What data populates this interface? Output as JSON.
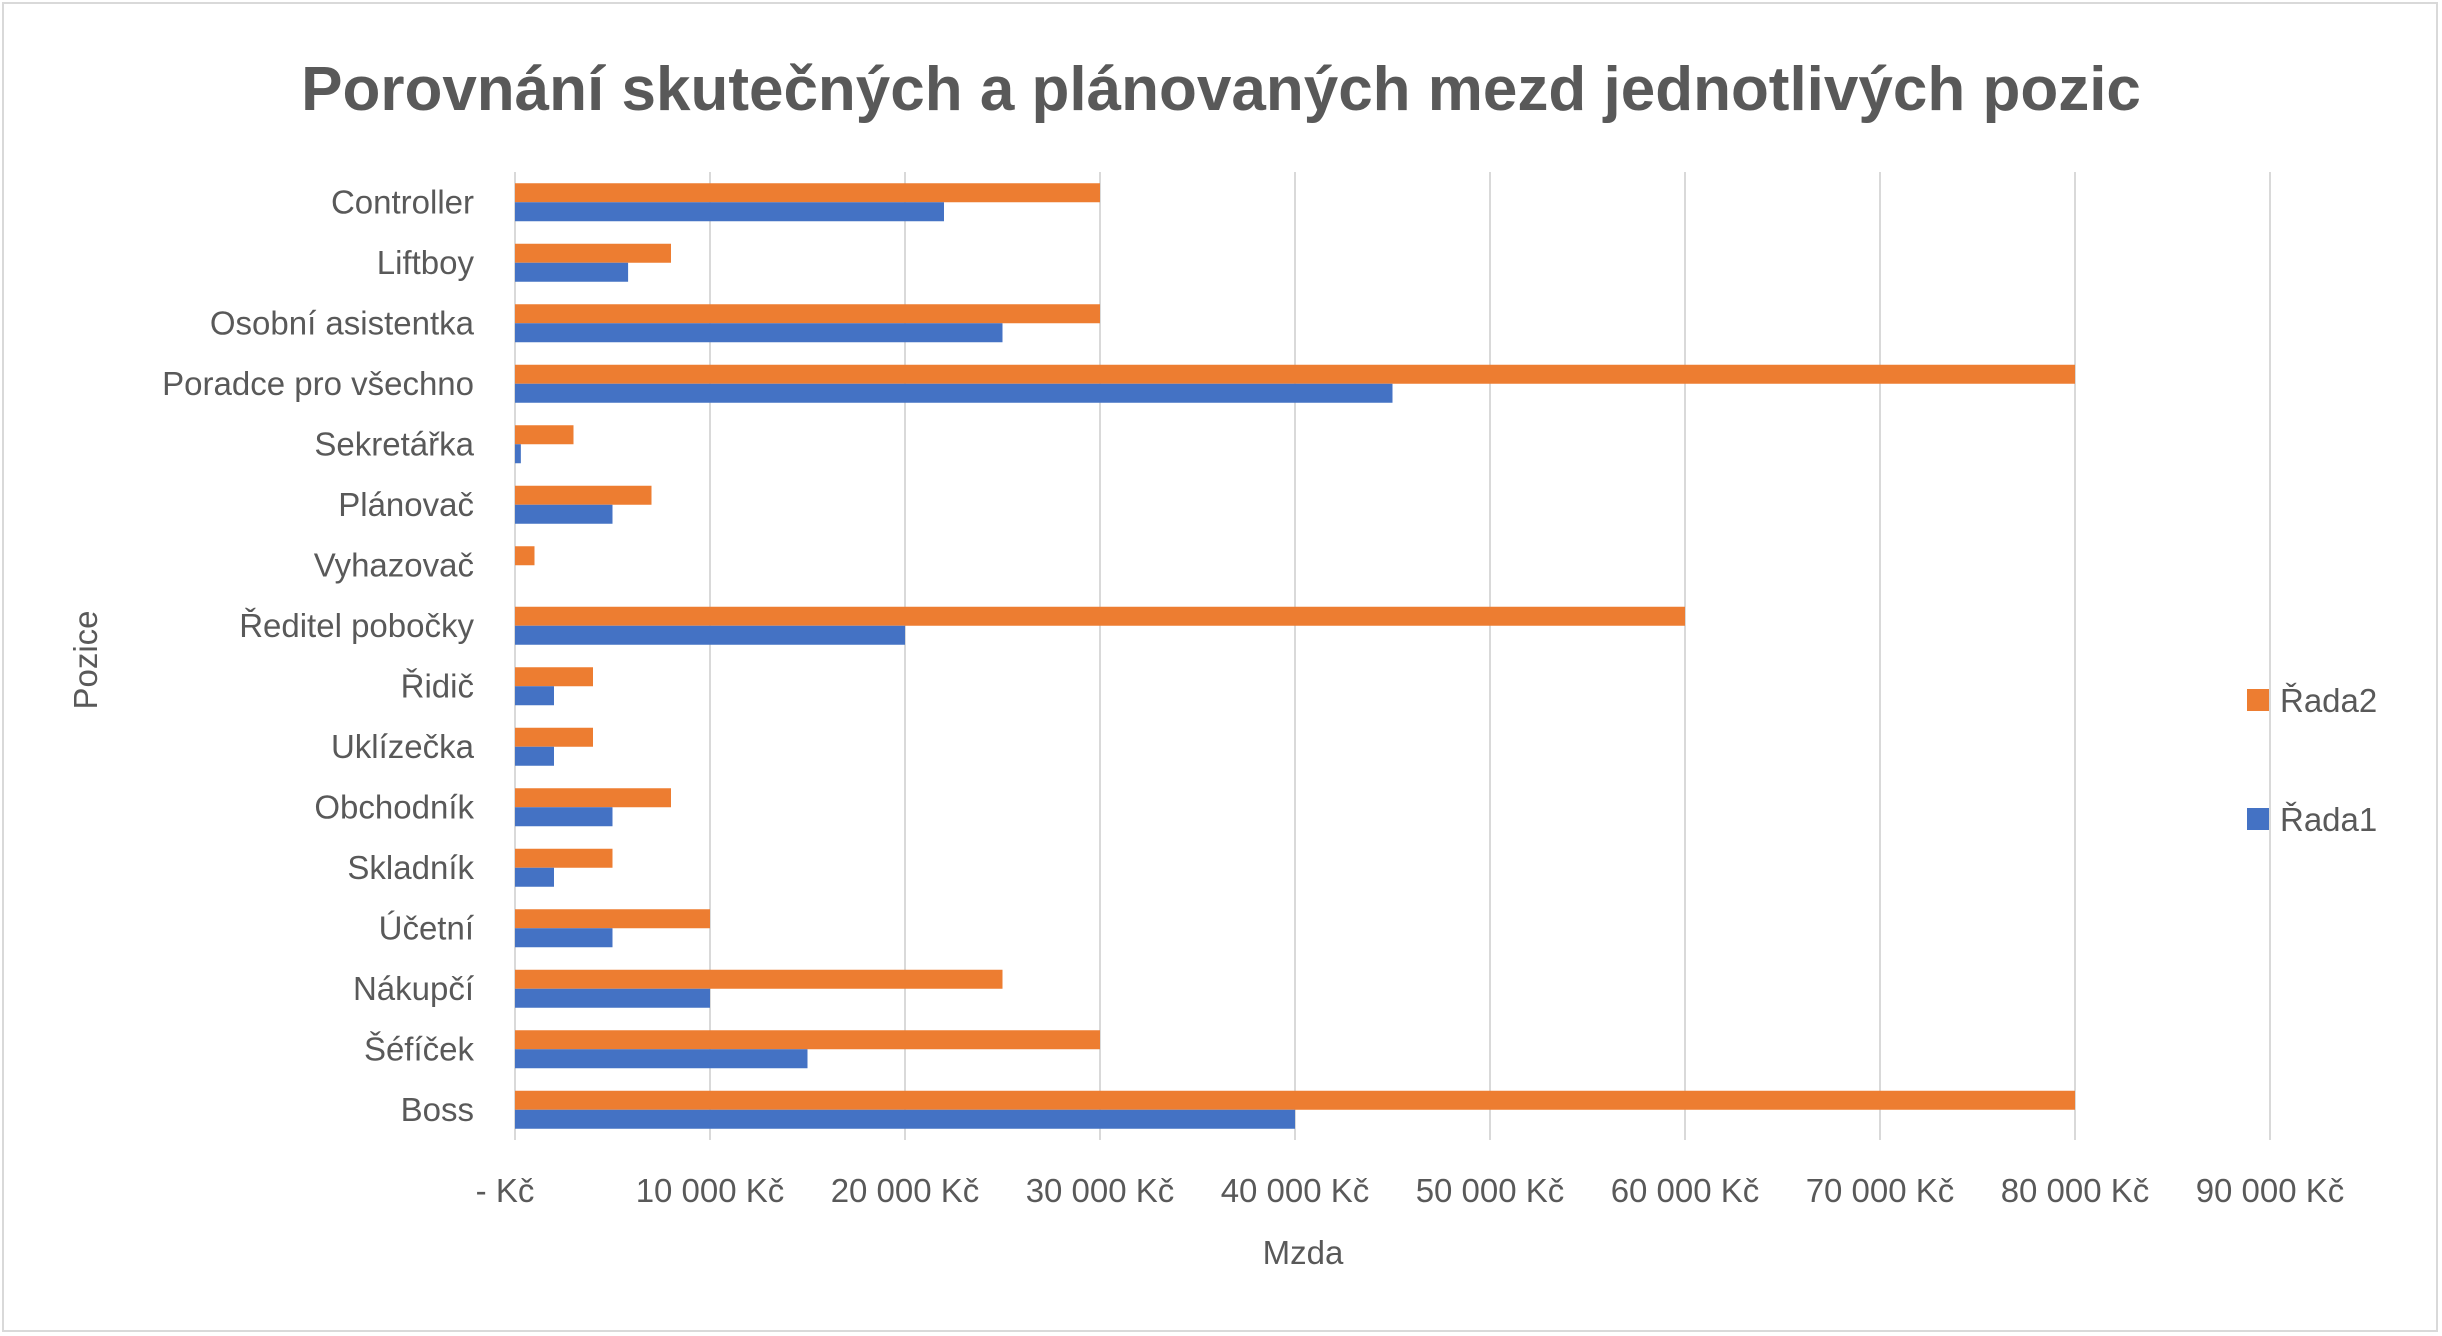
{
  "chart_data": {
    "type": "bar",
    "orientation": "horizontal",
    "title": "Porovnání skutečných a plánovaných mezd jednotlivých pozic",
    "xlabel": "Mzda",
    "ylabel": "Pozice",
    "xlim": [
      0,
      90000
    ],
    "x_ticks": [
      0,
      10000,
      20000,
      30000,
      40000,
      50000,
      60000,
      70000,
      80000,
      90000
    ],
    "x_tick_labels": [
      "-   Kč",
      "10 000 Kč",
      "20 000 Kč",
      "30 000 Kč",
      "40 000 Kč",
      "50 000 Kč",
      "60 000 Kč",
      "70 000 Kč",
      "80 000 Kč",
      "90 000 Kč"
    ],
    "grid": "vertical",
    "legend_position": "right",
    "categories": [
      "Boss",
      "Šéfíček",
      "Nákupčí",
      "Účetní",
      "Skladník",
      "Obchodník",
      "Uklízečka",
      "Řidič",
      "Ředitel pobočky",
      "Vyhazovač",
      "Plánovač",
      "Sekretářka",
      "Poradce pro všechno",
      "Osobní asistentka",
      "Liftboy",
      "Controller"
    ],
    "series": [
      {
        "name": "Řada1",
        "color": "#4472C4",
        "values": [
          40000,
          15000,
          10000,
          5000,
          2000,
          5000,
          2000,
          2000,
          20000,
          0,
          5000,
          300,
          45000,
          25000,
          5800,
          22000
        ]
      },
      {
        "name": "Řada2",
        "color": "#ED7D31",
        "values": [
          80000,
          30000,
          25000,
          10000,
          5000,
          8000,
          4000,
          4000,
          60000,
          1000,
          7000,
          3000,
          80000,
          30000,
          8000,
          30000
        ]
      }
    ]
  }
}
